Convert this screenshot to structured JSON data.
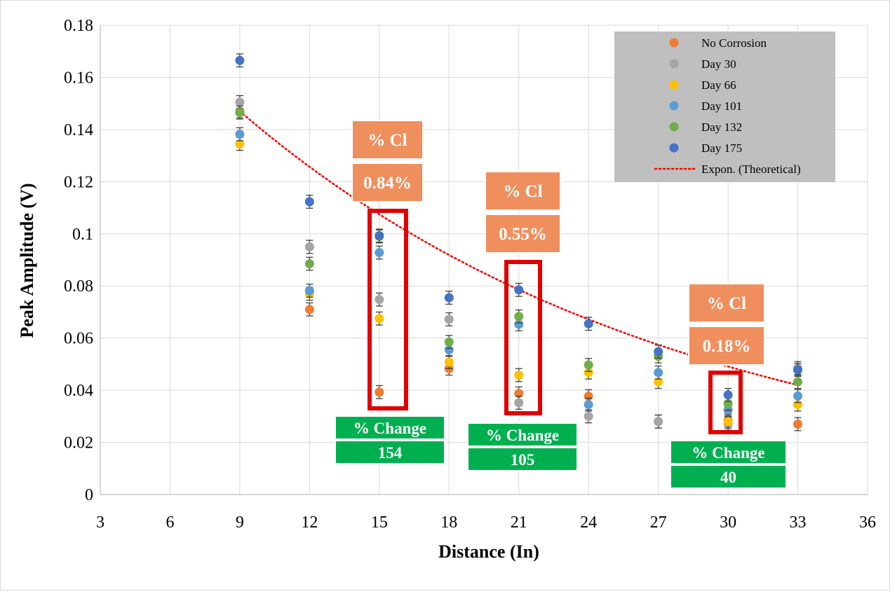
{
  "chart_data": {
    "type": "scatter",
    "title": "",
    "xlabel": "Distance (In)",
    "ylabel": "Peak Amplitude (V)",
    "xlim": [
      3,
      36
    ],
    "ylim": [
      0,
      0.18
    ],
    "xticks": [
      3,
      6,
      9,
      12,
      15,
      18,
      21,
      24,
      27,
      30,
      33,
      36
    ],
    "yticks": [
      0,
      0.02,
      0.04,
      0.06,
      0.08,
      0.1,
      0.12,
      0.14,
      0.16,
      0.18
    ],
    "ytick_labels": [
      "0",
      "0.02",
      "0.04",
      "0.06",
      "0.08",
      "0.1",
      "0.12",
      "0.14",
      "0.16",
      "0.18"
    ],
    "grid": true,
    "legend_position": "top-right",
    "error_bar": 0.0025,
    "x": [
      9,
      12,
      15,
      18,
      21,
      24,
      27,
      30,
      33
    ],
    "series": [
      {
        "name": "No Corrosion",
        "color": "#ED7D31",
        "values": [
          0.147,
          0.071,
          0.0393,
          0.0483,
          0.0388,
          0.0377,
          0.028,
          0.0285,
          0.027
        ]
      },
      {
        "name": "Day 30",
        "color": "#A5A5A5",
        "values": [
          0.1505,
          0.095,
          0.0748,
          0.0672,
          0.0352,
          0.03,
          0.028,
          0.0272,
          0.0485
        ]
      },
      {
        "name": "Day 66",
        "color": "#FFC000",
        "values": [
          0.1345,
          0.077,
          0.0675,
          0.0508,
          0.0458,
          0.0468,
          0.0432,
          0.028,
          0.0345
        ]
      },
      {
        "name": "Day 101",
        "color": "#5B9BD5",
        "values": [
          0.1382,
          0.0782,
          0.0928,
          0.0555,
          0.0653,
          0.0345,
          0.0468,
          0.0325,
          0.0378
        ]
      },
      {
        "name": "Day 132",
        "color": "#70AD47",
        "values": [
          0.1465,
          0.0885,
          0.099,
          0.0585,
          0.0683,
          0.0497,
          0.053,
          0.0348,
          0.0432
        ]
      },
      {
        "name": "Day 175",
        "color": "#4472C4",
        "values": [
          0.1665,
          0.1123,
          0.0993,
          0.0755,
          0.0785,
          0.0655,
          0.0548,
          0.0382,
          0.0478
        ]
      }
    ],
    "trendline": {
      "name": "Expon. (Theoretical)",
      "color": "#FF0000",
      "type": "exponential",
      "x": [
        9,
        33
      ],
      "y": [
        0.147,
        0.042
      ]
    },
    "legend": {
      "entries": [
        "No Corrosion",
        "Day 30",
        "Day 66",
        "Day 101",
        "Day 132",
        "Day 175",
        "Expon. (Theoretical)"
      ],
      "background": "#BFBFBF"
    },
    "annotations": {
      "cl_color": "#F08F5E",
      "change_color": "#00B050",
      "highlight_color": "#E00000",
      "cl_boxes": [
        {
          "label": "% Cl",
          "value": "0.84%",
          "x": 15
        },
        {
          "label": "% Cl",
          "value": "0.55%",
          "x": 21
        },
        {
          "label": "% Cl",
          "value": "0.18%",
          "x": 30
        }
      ],
      "change_boxes": [
        {
          "label": "% Change",
          "value": "154",
          "x": 15
        },
        {
          "label": "% Change",
          "value": "105",
          "x": 21
        },
        {
          "label": "% Change",
          "value": "40",
          "x": 30
        }
      ]
    }
  }
}
